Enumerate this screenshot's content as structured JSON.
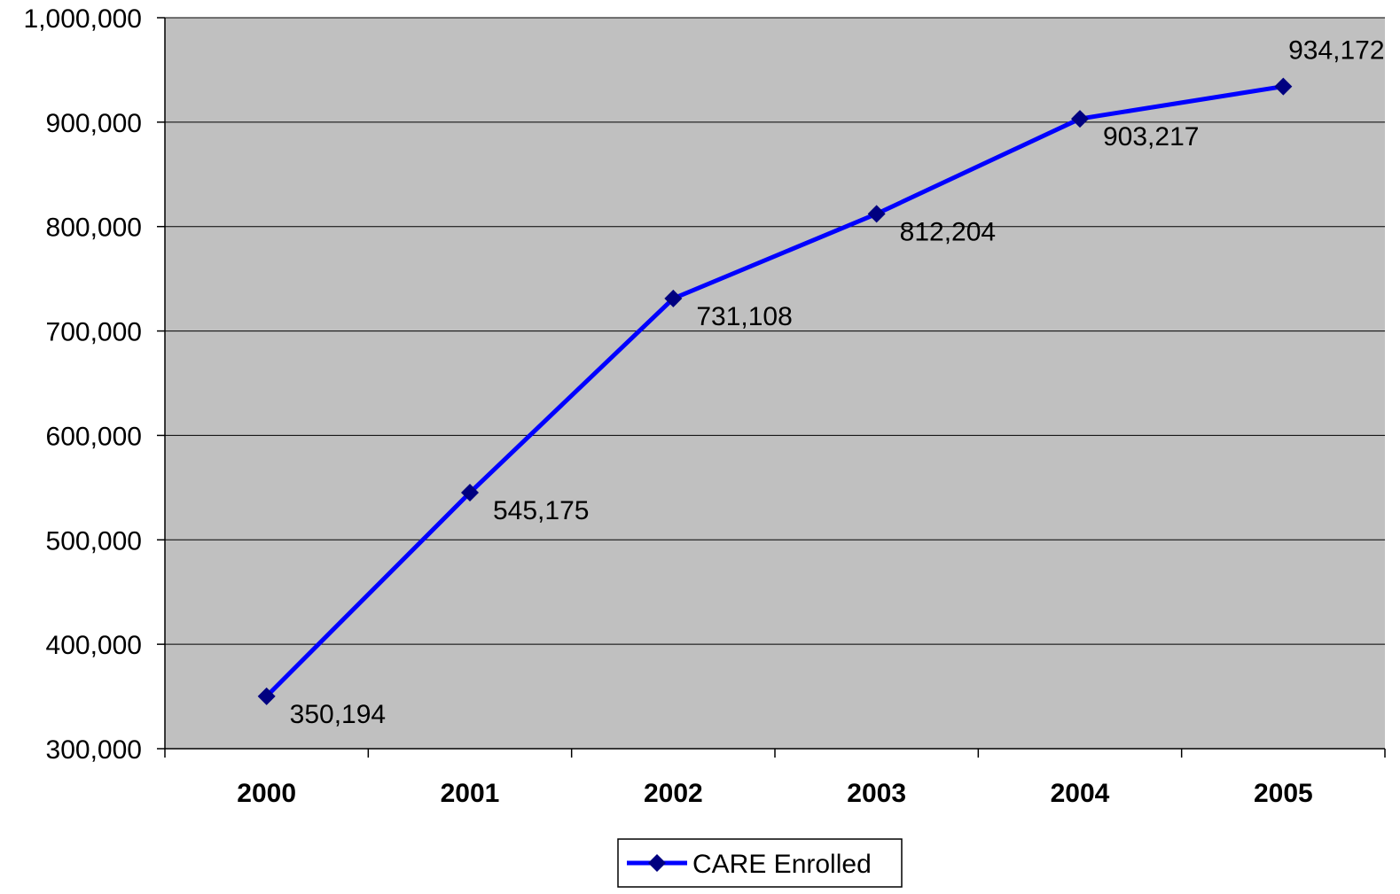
{
  "chart_data": {
    "type": "line",
    "title": "",
    "xlabel": "",
    "ylabel": "",
    "categories": [
      "2000",
      "2001",
      "2002",
      "2003",
      "2004",
      "2005"
    ],
    "series": [
      {
        "name": "CARE Enrolled",
        "values": [
          350194,
          545175,
          731108,
          812204,
          903217,
          934172
        ],
        "color": "#0000FF",
        "marker_color": "#000080",
        "marker": "diamond"
      }
    ],
    "data_labels": [
      "350,194",
      "545,175",
      "731,108",
      "812,204",
      "903,217",
      "934,172"
    ],
    "ylim": [
      300000,
      1000000
    ],
    "yticks": [
      300000,
      400000,
      500000,
      600000,
      700000,
      800000,
      900000,
      1000000
    ],
    "ytick_labels": [
      "300,000",
      "400,000",
      "500,000",
      "600,000",
      "700,000",
      "800,000",
      "900,000",
      "1,000,000"
    ],
    "grid": true,
    "plot_background": "#C0C0C0",
    "legend": {
      "position": "bottom",
      "entries": [
        "CARE Enrolled"
      ]
    }
  }
}
